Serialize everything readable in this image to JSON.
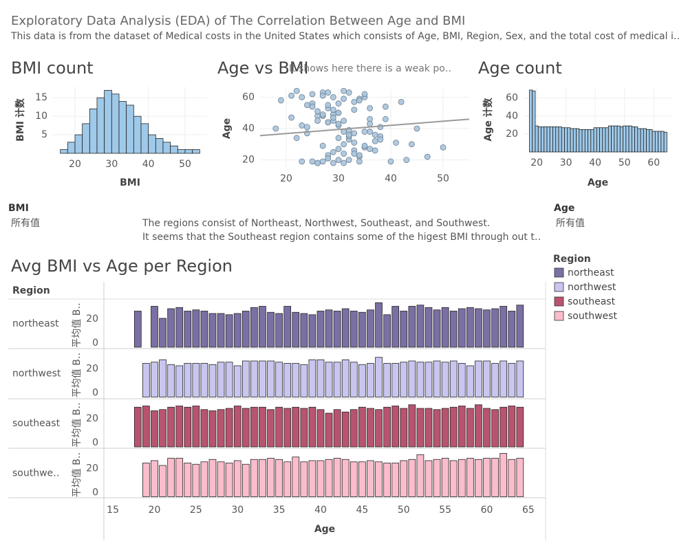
{
  "header": {
    "title": "Exploratory Data Analysis (EDA) of The Correlation Between Age and BMI",
    "subtitle": "This data is from the dataset of Medical costs in the United States which consists of Age, BMI, Region, Sex, and the total cost of medical i‥"
  },
  "filters": [
    {
      "label": "BMI",
      "value": "所有值"
    },
    {
      "label": "Age",
      "value": "所有值"
    }
  ],
  "note": {
    "lines": [
      "The regions consist of Northeast, Northwest, Southeast, and Southwest.",
      "It seems that the Southeast region contains some of the higest BMI through out t‥"
    ]
  },
  "chart_data": [
    {
      "type": "histogram",
      "title": "BMI count",
      "xlabel": "BMI",
      "ylabel": "BMI 计数",
      "bins": [
        16,
        18,
        20,
        22,
        24,
        26,
        28,
        30,
        32,
        34,
        36,
        38,
        40,
        42,
        44,
        46,
        48,
        50,
        52,
        54
      ],
      "counts": [
        1,
        3,
        5,
        8,
        12,
        15,
        17,
        16,
        14,
        13,
        10,
        8,
        5,
        4,
        3,
        2,
        1,
        1,
        1
      ],
      "color": "#9fc9e9",
      "edgecolor": "#222222",
      "grid": true,
      "xlim": [
        14,
        56
      ],
      "ylim": [
        0,
        18
      ],
      "xticks": [
        20,
        30,
        40,
        50
      ],
      "yticks": [
        5,
        10,
        15
      ]
    },
    {
      "type": "scatter",
      "title": "Age vs BMI",
      "annotation": "It shows here there is a weak po‥",
      "ylabel": "Age",
      "x": [
        25,
        31,
        28,
        35,
        22,
        33,
        29,
        38,
        27,
        30,
        24,
        36,
        32,
        26,
        41,
        19,
        34,
        28,
        31,
        37,
        23,
        30,
        27,
        33,
        45,
        29,
        35,
        21,
        32,
        26,
        39,
        30,
        28,
        34,
        24,
        36,
        31,
        27,
        43,
        29,
        33,
        25,
        38,
        30,
        22,
        35,
        28,
        32,
        40,
        26,
        31,
        34,
        29,
        37,
        23,
        30,
        27,
        33,
        47,
        28,
        36,
        24,
        32,
        30,
        26,
        39,
        29,
        35,
        21,
        31,
        28,
        34,
        42,
        27,
        30,
        33,
        25,
        37,
        29,
        32,
        18,
        36,
        28,
        31,
        44,
        26,
        34,
        30,
        23,
        38,
        29,
        33,
        27,
        35,
        31,
        50,
        25,
        32,
        28,
        36
      ],
      "y": [
        19,
        45,
        23,
        60,
        34,
        52,
        18,
        41,
        63,
        27,
        55,
        38,
        20,
        48,
        31,
        58,
        22,
        44,
        64,
        36,
        19,
        50,
        29,
        57,
        40,
        25,
        62,
        47,
        33,
        18,
        54,
        42,
        21,
        59,
        37,
        46,
        30,
        61,
        20,
        49,
        26,
        56,
        35,
        43,
        64,
        28,
        53,
        39,
        19,
        51,
        24,
        58,
        45,
        32,
        60,
        20,
        48,
        37,
        22,
        55,
        27,
        41,
        63,
        34,
        18,
        46,
        52,
        29,
        61,
        38,
        44,
        23,
        57,
        19,
        50,
        31,
        62,
        26,
        47,
        35,
        40,
        53,
        21,
        59,
        30,
        45,
        19,
        56,
        42,
        33,
        60,
        24,
        49,
        38,
        18,
        28,
        54,
        36,
        63,
        43
      ],
      "color": "#a8c4dc",
      "edgecolor": "#6b7f93",
      "grid": true,
      "trend": {
        "x": [
          15,
          55
        ],
        "y": [
          35.5,
          46
        ],
        "color": "#999999"
      },
      "xlim": [
        15,
        55
      ],
      "ylim": [
        15,
        65
      ],
      "xticks": [
        20,
        30,
        40,
        50
      ],
      "yticks": [
        20,
        40,
        60
      ]
    },
    {
      "type": "bar",
      "title": "Age count",
      "xlabel": "Age",
      "ylabel": "Age 计数",
      "x": [
        18,
        19,
        20,
        21,
        22,
        23,
        24,
        25,
        26,
        27,
        28,
        29,
        30,
        31,
        32,
        33,
        34,
        35,
        36,
        37,
        38,
        39,
        40,
        41,
        42,
        43,
        44,
        45,
        46,
        47,
        48,
        49,
        50,
        51,
        52,
        53,
        54,
        55,
        56,
        57,
        58,
        59,
        60,
        61,
        62,
        63,
        64
      ],
      "values": [
        69,
        68,
        29,
        28,
        28,
        28,
        28,
        28,
        28,
        28,
        28,
        27,
        27,
        27,
        26,
        26,
        26,
        25,
        25,
        25,
        25,
        25,
        27,
        27,
        27,
        27,
        27,
        29,
        29,
        29,
        29,
        28,
        29,
        29,
        29,
        28,
        28,
        26,
        26,
        26,
        25,
        25,
        23,
        23,
        23,
        23,
        22
      ],
      "color": "#9fc9e9",
      "edgecolor": "#222222",
      "grid": true,
      "xlim": [
        15.5,
        66.3
      ],
      "ylim": [
        0,
        72
      ],
      "xticks": [
        20,
        30,
        40,
        50,
        60
      ],
      "yticks": [
        20,
        40,
        60
      ]
    },
    {
      "type": "facet_bar",
      "title": "Avg BMI vs Age per Region",
      "xlabel": "Age",
      "ylabel": "平均值 B‥",
      "row_header": "Region",
      "row_labels": [
        "northeast",
        "northwest",
        "southeast",
        "southwe‥"
      ],
      "legend": {
        "title": "Region"
      },
      "x": [
        18,
        19,
        20,
        21,
        22,
        23,
        24,
        25,
        26,
        27,
        28,
        29,
        30,
        31,
        32,
        33,
        34,
        35,
        36,
        37,
        38,
        39,
        40,
        41,
        42,
        43,
        44,
        45,
        46,
        47,
        48,
        49,
        50,
        51,
        52,
        53,
        54,
        55,
        56,
        57,
        58,
        59,
        60,
        61,
        62,
        63,
        64
      ],
      "series": [
        {
          "name": "northeast",
          "color": "#7b6fa3",
          "values": [
            30,
            null,
            34,
            24,
            32,
            33,
            30,
            31,
            30,
            28,
            28,
            27,
            28,
            30,
            33,
            34,
            29,
            28,
            34,
            29,
            28,
            27,
            30,
            31,
            30,
            32,
            30,
            29,
            31,
            37,
            27,
            34,
            30,
            34,
            35,
            33,
            31,
            33,
            30,
            32,
            33,
            32,
            31,
            32,
            34,
            30,
            35
          ]
        },
        {
          "name": "northwest",
          "color": "#c8c5ef",
          "values": [
            null,
            28,
            29,
            31,
            27,
            26,
            28,
            28,
            28,
            27,
            29,
            29,
            26,
            30,
            30,
            30,
            30,
            29,
            28,
            28,
            27,
            31,
            31,
            29,
            29,
            31,
            29,
            27,
            28,
            33,
            28,
            28,
            29,
            30,
            29,
            29,
            30,
            29,
            30,
            28,
            26,
            30,
            30,
            28,
            30,
            28,
            30
          ]
        },
        {
          "name": "southeast",
          "color": "#b8546f",
          "values": [
            33,
            34,
            30,
            31,
            33,
            34,
            33,
            34,
            31,
            30,
            31,
            32,
            34,
            32,
            33,
            33,
            31,
            33,
            32,
            33,
            32,
            33,
            31,
            28,
            31,
            29,
            31,
            33,
            32,
            31,
            33,
            34,
            32,
            35,
            32,
            32,
            31,
            32,
            33,
            34,
            32,
            35,
            32,
            31,
            33,
            34,
            33
          ]
        },
        {
          "name": "southwest",
          "color": "#fbbccc",
          "values": [
            null,
            28,
            30,
            26,
            32,
            32,
            28,
            27,
            29,
            31,
            29,
            28,
            30,
            27,
            31,
            31,
            32,
            31,
            29,
            33,
            29,
            30,
            30,
            31,
            32,
            31,
            29,
            29,
            30,
            29,
            28,
            28,
            30,
            31,
            35,
            30,
            31,
            32,
            30,
            31,
            32,
            31,
            32,
            32,
            36,
            31,
            32
          ]
        }
      ],
      "xlim": [
        14,
        66
      ],
      "ylim": [
        0,
        40
      ],
      "xticks": [
        15,
        20,
        25,
        30,
        35,
        40,
        45,
        50,
        55,
        60,
        65
      ],
      "yticks": [
        0,
        20
      ]
    }
  ]
}
